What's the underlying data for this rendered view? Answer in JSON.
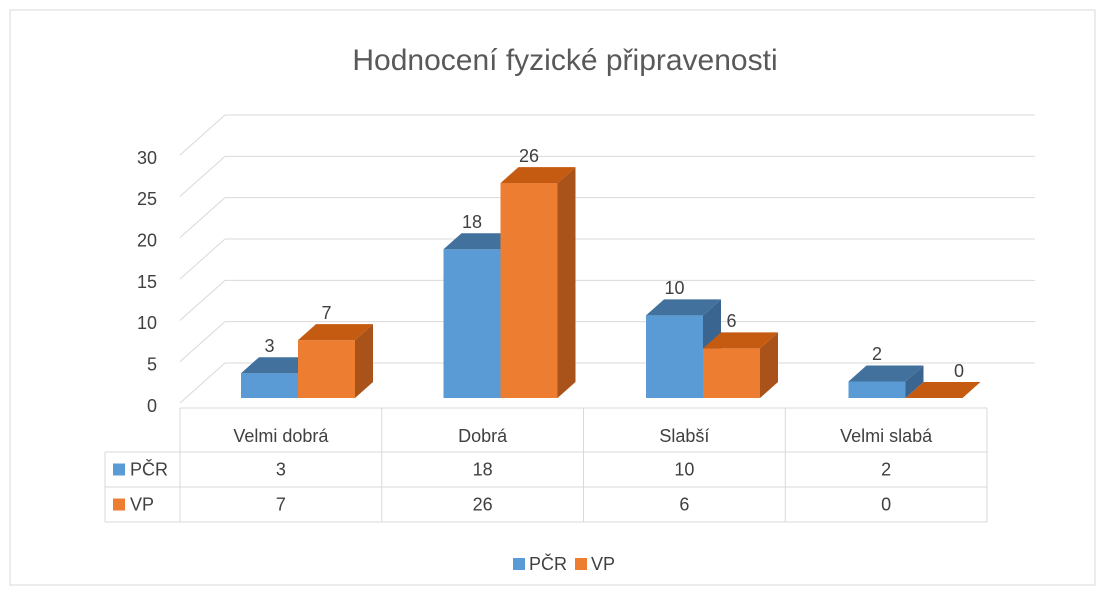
{
  "chart_data": {
    "type": "bar3d",
    "title": "Hodnocení fyzické připravenosti",
    "categories": [
      "Velmi dobrá",
      "Dobrá",
      "Slabší",
      "Velmi slabá"
    ],
    "series": [
      {
        "name": "PČR",
        "color": "#5b9bd5",
        "values": [
          3,
          18,
          10,
          2
        ]
      },
      {
        "name": "VP",
        "color": "#ed7d31",
        "values": [
          7,
          26,
          6,
          0
        ]
      }
    ],
    "ylim": [
      0,
      30
    ],
    "yticks": [
      0,
      5,
      10,
      15,
      20,
      25,
      30
    ],
    "grid": true,
    "legend": "bottom",
    "data_table": true
  }
}
